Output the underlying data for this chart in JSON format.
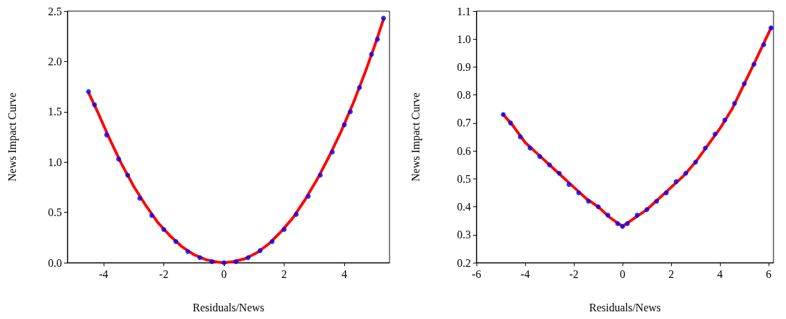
{
  "chart_data": [
    {
      "type": "scatter",
      "xlabel": "Residuals/News",
      "ylabel": "News Impact Curve",
      "xlim": [
        -5.2,
        5.5
      ],
      "xticks": [
        -4,
        -2,
        0,
        2,
        4
      ],
      "ylim": [
        0,
        2.5
      ],
      "yticks": [
        {
          "value": 0,
          "label": "0.0"
        },
        {
          "value": 0.5,
          "label": "0.5"
        },
        {
          "value": 1,
          "label": "1.0"
        },
        {
          "value": 1.5,
          "label": "1.5"
        },
        {
          "value": 2,
          "label": "2.0"
        },
        {
          "value": 2.5,
          "label": "2.5"
        }
      ],
      "grid": false,
      "series": [
        {
          "type": "scatter",
          "marker": "circle",
          "color": "#0000ff",
          "x": [
            -4.5,
            -4.3,
            -3.9,
            -3.5,
            -3.2,
            -2.8,
            -2.4,
            -2.0,
            -1.6,
            -1.2,
            -0.8,
            -0.4,
            0.0,
            0.4,
            0.8,
            1.2,
            1.6,
            2.0,
            2.4,
            2.8,
            3.2,
            3.6,
            4.0,
            4.2,
            4.5,
            4.9,
            5.1,
            5.3
          ],
          "values": [
            1.7,
            1.57,
            1.27,
            1.03,
            0.87,
            0.64,
            0.47,
            0.33,
            0.21,
            0.11,
            0.05,
            0.01,
            0.0,
            0.01,
            0.05,
            0.12,
            0.21,
            0.33,
            0.48,
            0.66,
            0.87,
            1.1,
            1.37,
            1.5,
            1.74,
            2.07,
            2.22,
            2.43
          ]
        },
        {
          "type": "line",
          "marker": "none",
          "color": "#ff0000",
          "x": [
            -4.5,
            -4.2,
            -3.8,
            -3.4,
            -3.0,
            -2.6,
            -2.2,
            -1.8,
            -1.4,
            -1.0,
            -0.6,
            -0.2,
            0,
            0.3,
            0.7,
            1.1,
            1.5,
            1.9,
            2.3,
            2.7,
            3.1,
            3.5,
            3.9,
            4.3,
            4.7,
            5.0,
            5.3
          ],
          "values": [
            1.69,
            1.5,
            1.23,
            0.98,
            0.76,
            0.57,
            0.4,
            0.27,
            0.16,
            0.08,
            0.03,
            0.005,
            0.0,
            0.01,
            0.04,
            0.1,
            0.19,
            0.31,
            0.45,
            0.63,
            0.83,
            1.06,
            1.31,
            1.59,
            1.9,
            2.15,
            2.42
          ]
        }
      ]
    },
    {
      "type": "scatter",
      "xlabel": "Residuals/News",
      "ylabel": "News Impact Curve",
      "xlim": [
        -6,
        6.2
      ],
      "xticks": [
        -6,
        -4,
        -2,
        0,
        2,
        4,
        6
      ],
      "ylim": [
        0.2,
        1.1
      ],
      "yticks": [
        0.2,
        0.3,
        0.4,
        0.5,
        0.6,
        0.7,
        0.8,
        0.9,
        {
          "value": 1,
          "label": "1.0"
        },
        1.1
      ],
      "grid": false,
      "series": [
        {
          "type": "scatter",
          "marker": "circle",
          "color": "#0000ff",
          "x": [
            -4.9,
            -4.6,
            -4.2,
            -3.8,
            -3.4,
            -3.0,
            -2.6,
            -2.2,
            -1.8,
            -1.4,
            -1.0,
            -0.6,
            -0.2,
            0.0,
            0.2,
            0.6,
            1.0,
            1.4,
            1.8,
            2.2,
            2.6,
            3.0,
            3.4,
            3.8,
            4.2,
            4.6,
            5.0,
            5.4,
            5.8,
            6.1
          ],
          "values": [
            0.73,
            0.7,
            0.65,
            0.61,
            0.58,
            0.55,
            0.52,
            0.48,
            0.45,
            0.42,
            0.4,
            0.37,
            0.34,
            0.33,
            0.34,
            0.37,
            0.39,
            0.42,
            0.45,
            0.49,
            0.52,
            0.56,
            0.61,
            0.66,
            0.71,
            0.77,
            0.84,
            0.91,
            0.98,
            1.04
          ]
        },
        {
          "type": "line",
          "marker": "none",
          "color": "#ff0000",
          "x": [
            -4.9,
            -4.5,
            -4,
            -3.5,
            -3,
            -2.5,
            -2,
            -1.5,
            -1,
            -0.5,
            0,
            0.5,
            1,
            1.5,
            2,
            2.5,
            3,
            3.5,
            4,
            4.5,
            5,
            5.5,
            6.1
          ],
          "values": [
            0.73,
            0.69,
            0.63,
            0.59,
            0.55,
            0.51,
            0.47,
            0.43,
            0.4,
            0.36,
            0.33,
            0.36,
            0.39,
            0.43,
            0.47,
            0.51,
            0.56,
            0.62,
            0.68,
            0.75,
            0.84,
            0.93,
            1.04
          ]
        }
      ]
    }
  ]
}
